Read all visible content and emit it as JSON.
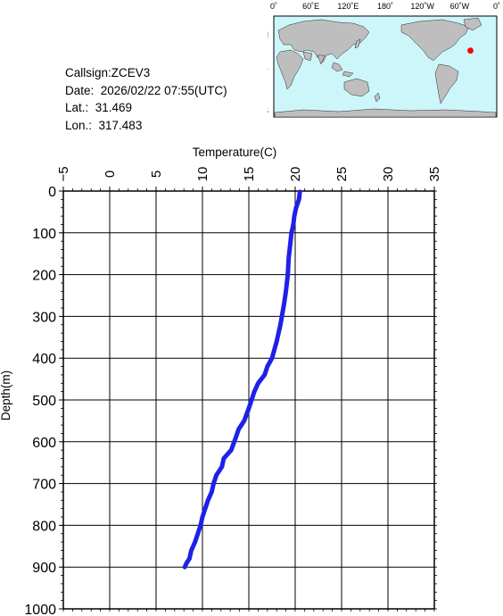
{
  "info": {
    "callsign": "Callsign:ZCEV3",
    "date": "Date:  2026/02/22 07:55(UTC)",
    "lat": "Lat.:  31.469",
    "lon": "Lon.:  317.483"
  },
  "map": {
    "lon_labels": [
      "0˚",
      "60˚E",
      "120˚E",
      "180˚",
      "120˚W",
      "60˚W",
      "0˚"
    ],
    "lat_labels": [
      "60˚N",
      "0˚",
      "60˚S"
    ],
    "marker": {
      "lat": 31.469,
      "lon": 317.483,
      "color": "#ff0000"
    },
    "ocean_color": "#cdf6fb",
    "land_color": "#bebebe"
  },
  "chart_data": {
    "type": "line",
    "title": "",
    "xlabel": "Temperature(C)",
    "ylabel": "Depth(m)",
    "xlim": [
      -5,
      35
    ],
    "ylim": [
      0,
      1000
    ],
    "x_ticks": [
      "-5",
      "0",
      "5",
      "10",
      "15",
      "20",
      "25",
      "30",
      "35"
    ],
    "y_ticks": [
      "0",
      "100",
      "200",
      "300",
      "400",
      "500",
      "600",
      "700",
      "800",
      "900",
      "1000"
    ],
    "y_inverted": true,
    "grid": true,
    "line_color": "#2020e8",
    "series": [
      {
        "name": "",
        "x": [
          20.5,
          20.4,
          20.1,
          19.9,
          19.8,
          19.6,
          19.5,
          19.3,
          19.2,
          19.0,
          18.8,
          18.4,
          18.0,
          17.5,
          17.0,
          16.7,
          16.0,
          15.6,
          15.3,
          15.0,
          14.5,
          13.9,
          13.6,
          13.1,
          12.3,
          12.1,
          11.5,
          11.2,
          11.0,
          10.6,
          10.3,
          10.0,
          9.8,
          9.5,
          9.2,
          8.8,
          8.6,
          8.3,
          8.1
        ],
        "y": [
          2,
          20,
          40,
          60,
          80,
          100,
          120,
          160,
          200,
          240,
          270,
          320,
          360,
          400,
          420,
          440,
          460,
          480,
          500,
          520,
          550,
          570,
          590,
          620,
          640,
          660,
          680,
          700,
          720,
          740,
          760,
          780,
          800,
          820,
          840,
          860,
          880,
          890,
          900
        ]
      }
    ]
  }
}
